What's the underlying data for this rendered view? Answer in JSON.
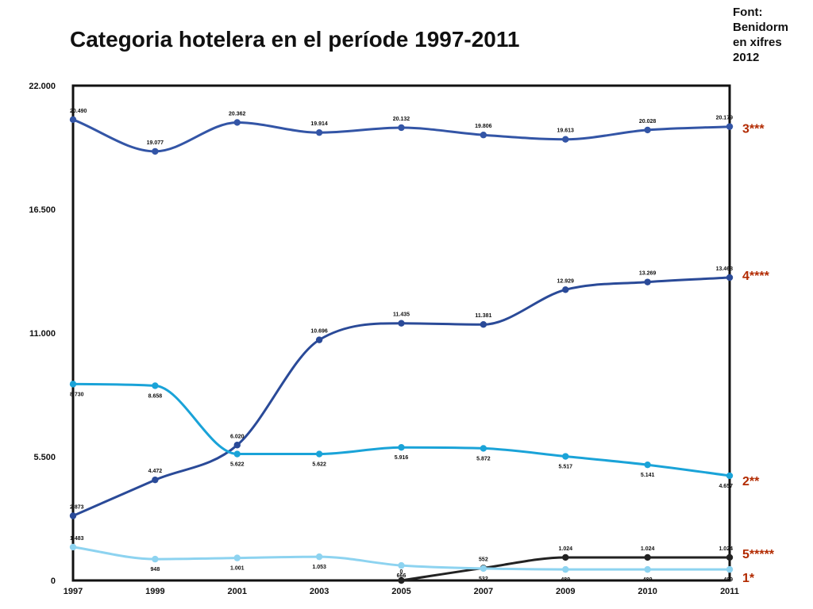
{
  "header": {
    "title": "Categoria hotelera en el període 1997-2011",
    "source_lines": [
      "Font:",
      "Benidorm",
      "en xifres",
      "2012"
    ]
  },
  "colors": {
    "series_label": "#b22a00",
    "frame": "#111111"
  },
  "chart_data": {
    "type": "line",
    "title": "Categoria hotelera en el període 1997-2011",
    "xlabel": "",
    "ylabel": "",
    "x": [
      "1997",
      "1999",
      "2001",
      "2003",
      "2005",
      "2007",
      "2009",
      "2010",
      "2011"
    ],
    "ylim": [
      0,
      22000
    ],
    "yticks": [
      0,
      5500,
      11000,
      16500,
      22000
    ],
    "ytick_labels": [
      "0",
      "5.500",
      "11.000",
      "16.500",
      "22.000"
    ],
    "grid": false,
    "legend": "labels at right end of each line",
    "series": [
      {
        "name": "3***",
        "color": "#3355a6",
        "values": [
          20490,
          19077,
          20362,
          19914,
          20132,
          19806,
          19613,
          20028,
          20179
        ],
        "labels": [
          "20.490",
          "19.077",
          "20.362",
          "19.914",
          "20.132",
          "19.806",
          "19.613",
          "20.028",
          "20.179"
        ],
        "label_pos": [
          "above",
          "above",
          "above",
          "above",
          "above",
          "above",
          "above",
          "above",
          "above"
        ]
      },
      {
        "name": "4****",
        "color": "#2a4a98",
        "values": [
          2873,
          4472,
          6020,
          10696,
          11435,
          11381,
          12929,
          13269,
          13468
        ],
        "labels": [
          "2.873",
          "4.472",
          "6.020",
          "10.696",
          "11.435",
          "11.381",
          "12.929",
          "13.269",
          "13.468"
        ],
        "label_pos": [
          "above",
          "above",
          "above",
          "above",
          "above",
          "above",
          "above",
          "above",
          "above"
        ]
      },
      {
        "name": "2**",
        "color": "#1aa3d8",
        "values": [
          8730,
          8658,
          5622,
          5622,
          5916,
          5872,
          5517,
          5141,
          4657
        ],
        "labels": [
          "8.730",
          "8.658",
          "5.622",
          "5.622",
          "5.916",
          "5.872",
          "5.517",
          "5.141",
          "4.657"
        ],
        "label_pos": [
          "below",
          "below",
          "below",
          "below",
          "below",
          "below",
          "below",
          "below",
          "below"
        ]
      },
      {
        "name": "5*****",
        "color": "#222222",
        "values": [
          null,
          null,
          null,
          null,
          0,
          552,
          1024,
          1024,
          1024
        ],
        "labels": [
          "",
          "",
          "",
          "",
          "0",
          "552",
          "1.024",
          "1.024",
          "1.024"
        ],
        "label_pos": [
          "above",
          "above",
          "above",
          "above",
          "above",
          "above",
          "above",
          "above",
          "above"
        ]
      },
      {
        "name": "1*",
        "color": "#8dd3f0",
        "values": [
          1483,
          948,
          1001,
          1053,
          666,
          532,
          489,
          489,
          489
        ],
        "labels": [
          "1.483",
          "948",
          "1.001",
          "1.053",
          "666",
          "532",
          "489",
          "489",
          "489"
        ],
        "label_pos": [
          "above",
          "below",
          "below",
          "below",
          "below",
          "below",
          "below",
          "below",
          "below"
        ]
      }
    ]
  }
}
